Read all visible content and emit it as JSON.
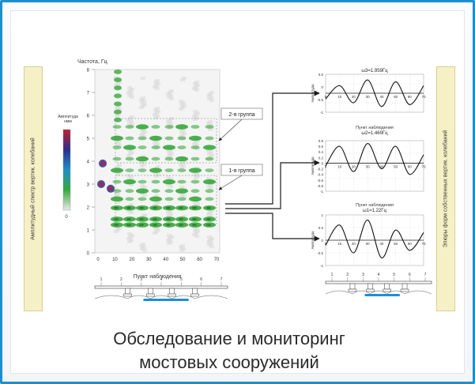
{
  "spectrogram": {
    "yaxis_title": "Частота, Гц",
    "xaxis_title": "Пункт наблюдения",
    "y_ticks": [
      "0",
      "1",
      "2",
      "3",
      "4",
      "5",
      "6",
      "7",
      "8"
    ],
    "x_ticks": [
      "0",
      "10",
      "20",
      "30",
      "40",
      "50",
      "60",
      "70"
    ],
    "colorbar_title": "Амплитуда нмм",
    "colorbar_min": "0",
    "colors": {
      "low": "#e9e9e9",
      "mid": "#36a83a",
      "high": "#2c2f8f",
      "peak": "#c0202a"
    }
  },
  "side_labels": {
    "left": "Амплитудный спектр вертик. колебаний",
    "right": "Эпюры форм собственных вертик. колебаний"
  },
  "group_labels": {
    "group2": "2-я группа",
    "group1": "1-я группа"
  },
  "mode_plots": [
    {
      "title": "ω3=1.959Гц",
      "ylabel": "Амплитуда",
      "xlabel": "",
      "y_ticks": [
        "0.5",
        "0",
        "-0.5",
        "-1"
      ],
      "x_ticks": [
        "0",
        "10",
        "20",
        "30",
        "40",
        "50",
        "60",
        "70"
      ],
      "chart_data": {
        "type": "line",
        "x": [
          0,
          10,
          20,
          30,
          40,
          50,
          60,
          70
        ],
        "y": [
          -0.3,
          0.4,
          -0.5,
          0.7,
          -0.7,
          0.6,
          -0.6,
          0.4
        ],
        "ylim": [
          -1,
          1
        ],
        "xlim": [
          0,
          70
        ]
      }
    },
    {
      "title": "ω2=1.469Гц",
      "ylabel": "Амплитуда",
      "xlabel": "Пункт наблюдения",
      "y_ticks": [
        "0.8",
        "0.6",
        "0.4",
        "0.2",
        "0",
        "-0.2",
        "-0.4",
        "-0.6",
        "-0.8",
        "-1"
      ],
      "x_ticks": [
        "0",
        "10",
        "20",
        "30",
        "40",
        "50",
        "60",
        "70"
      ],
      "chart_data": {
        "type": "line",
        "x": [
          0,
          10,
          20,
          30,
          40,
          50,
          60,
          70
        ],
        "y": [
          -0.1,
          0.6,
          -0.3,
          0.7,
          -0.2,
          0.6,
          -0.4,
          0.3
        ],
        "ylim": [
          -1,
          0.8
        ],
        "xlim": [
          0,
          70
        ]
      }
    },
    {
      "title": "ω1=1.22Гц",
      "ylabel": "Амплитуда",
      "xlabel": "Пункт наблюдения",
      "y_ticks": [
        "1",
        "0.5",
        "0",
        "-0.5",
        "-1"
      ],
      "x_ticks": [
        "0",
        "10",
        "20",
        "30",
        "40",
        "50",
        "60",
        "70"
      ],
      "chart_data": {
        "type": "line",
        "x": [
          0,
          10,
          20,
          30,
          40,
          50,
          60,
          70
        ],
        "y": [
          -0.2,
          0.6,
          -0.5,
          0.8,
          -0.7,
          0.4,
          -0.4,
          0.3
        ],
        "ylim": [
          -1,
          1
        ],
        "xlim": [
          0,
          70
        ]
      }
    }
  ],
  "bridge_left": {
    "points": [
      "1",
      "2",
      "3",
      "4",
      "5",
      "6",
      "7"
    ]
  },
  "bridge_right": {
    "points": [
      "1",
      "2",
      "3",
      "4",
      "5",
      "6",
      "7"
    ]
  },
  "arrow_color": "#1a1a1a",
  "caption": {
    "line1": "Обследование и мониторинг",
    "line2": "мостовых сооружений"
  }
}
